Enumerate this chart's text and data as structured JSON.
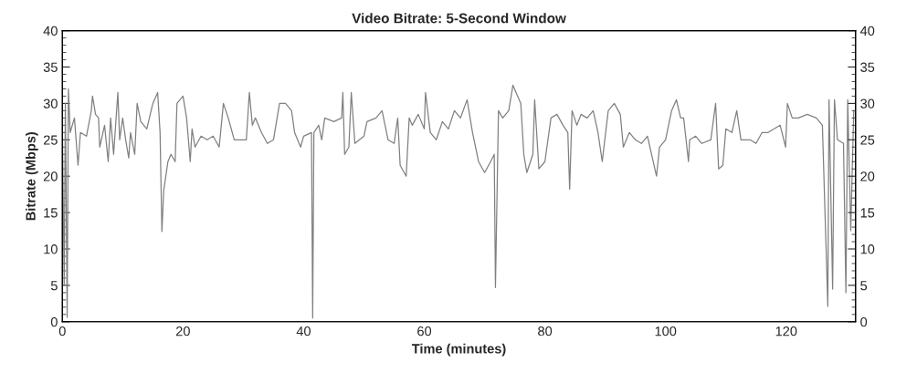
{
  "chart_data": {
    "type": "line",
    "title": "Video Bitrate: 5-Second Window",
    "xlabel": "Time (minutes)",
    "ylabel": "Bitrate (Mbps)",
    "xlim": [
      0,
      131.5
    ],
    "xticks": [
      0,
      20,
      40,
      60,
      80,
      100,
      120
    ],
    "ylim": [
      0,
      40
    ],
    "yticks": [
      0,
      5,
      10,
      15,
      20,
      25,
      30,
      35,
      40
    ],
    "y2lim": [
      0,
      40
    ],
    "y2ticks": [
      0,
      5,
      10,
      15,
      20,
      25,
      30,
      35,
      40
    ],
    "grid": false,
    "marker": "none",
    "line_style": "solid",
    "series": [
      {
        "color": "#808080",
        "x": [
          0,
          0.3,
          0.5,
          0.8,
          1.0,
          1.3,
          2,
          2.6,
          3,
          4,
          4.8,
          5,
          5.5,
          6,
          6.2,
          7,
          7.6,
          8,
          8.5,
          9.2,
          9.5,
          10,
          10.5,
          11,
          11.3,
          12,
          12.4,
          13,
          14,
          15,
          15.8,
          16.2,
          16.5,
          16.8,
          17.5,
          18,
          18.7,
          19,
          20,
          20.6,
          21.2,
          21.5,
          22,
          23,
          24,
          25,
          26,
          26.7,
          27.5,
          28.5,
          29,
          30.5,
          31,
          31.5,
          32,
          33,
          34,
          35,
          36,
          37,
          38,
          38.5,
          39.5,
          40,
          41.3,
          41.5,
          41.7,
          42.5,
          43,
          43.5,
          45,
          46.3,
          46.5,
          46.8,
          47.5,
          47.9,
          48.5,
          50,
          50.5,
          52,
          53,
          54,
          55,
          55.6,
          56,
          57,
          57.5,
          58,
          59,
          60,
          60.2,
          61,
          62,
          63,
          64,
          65,
          66,
          67.1,
          68,
          69,
          70,
          71,
          71.6,
          71.8,
          72.3,
          73,
          74,
          74.7,
          76,
          76.5,
          77,
          78,
          78.3,
          79,
          80,
          81,
          82,
          83,
          83.8,
          84.1,
          84.5,
          85.3,
          86,
          87,
          88,
          88.8,
          89.5,
          90.5,
          91.5,
          92.5,
          93,
          94,
          95,
          96,
          97,
          98.5,
          99,
          100,
          101,
          101.8,
          102.5,
          103,
          103.8,
          104,
          105,
          106,
          107.5,
          108.3,
          108.8,
          109.5,
          110,
          111,
          111.8,
          112.5,
          114,
          115,
          116,
          117,
          118,
          119,
          119.9,
          120.2,
          121,
          122,
          123.5,
          125,
          126,
          126.9,
          127.1,
          127.7,
          128,
          128.5,
          129.5,
          129.9,
          130.2,
          130.7,
          131.2
        ],
        "values": [
          27,
          5,
          30,
          0.6,
          32,
          26,
          28,
          21.5,
          26,
          25.5,
          29,
          31,
          28.5,
          28,
          24,
          27,
          22,
          28,
          23,
          31.5,
          25,
          28,
          25,
          22.5,
          26,
          23,
          30,
          27.5,
          26.5,
          30,
          31.5,
          26,
          12.4,
          18,
          22,
          23,
          22,
          30,
          31,
          28,
          22,
          26.5,
          24,
          25.5,
          25,
          25.5,
          24,
          30,
          28,
          25,
          25,
          25,
          31.5,
          27,
          28,
          26,
          24.5,
          25,
          30,
          30,
          29,
          26,
          24,
          25.5,
          26,
          0.5,
          26,
          27,
          25,
          28,
          27.5,
          28,
          31.5,
          23,
          24,
          31.5,
          24.5,
          25.5,
          27.5,
          28,
          29,
          25,
          24.5,
          28,
          21.5,
          20,
          28,
          27,
          28.5,
          26.5,
          31.5,
          26,
          25,
          27.5,
          26.5,
          29,
          28,
          30.5,
          26,
          22,
          20.5,
          22,
          23,
          4.7,
          29,
          28,
          29,
          32.5,
          30,
          23,
          20.5,
          23,
          30.5,
          21,
          22,
          28,
          28.5,
          27,
          26,
          18.2,
          29,
          27,
          28.5,
          28,
          29,
          26,
          22,
          29,
          30,
          28.5,
          24,
          26,
          25,
          24.5,
          25.5,
          20,
          24,
          25,
          29,
          30.5,
          28,
          28,
          22,
          25,
          25.5,
          24.5,
          25,
          30,
          21,
          21.5,
          26.5,
          26,
          29,
          25,
          25,
          24.5,
          26,
          26,
          26.5,
          27,
          24,
          30,
          28,
          28,
          28.5,
          28,
          27,
          2.1,
          30.5,
          4.5,
          30.5,
          25,
          24.5,
          4,
          30.5,
          12.5,
          29
        ]
      }
    ]
  }
}
